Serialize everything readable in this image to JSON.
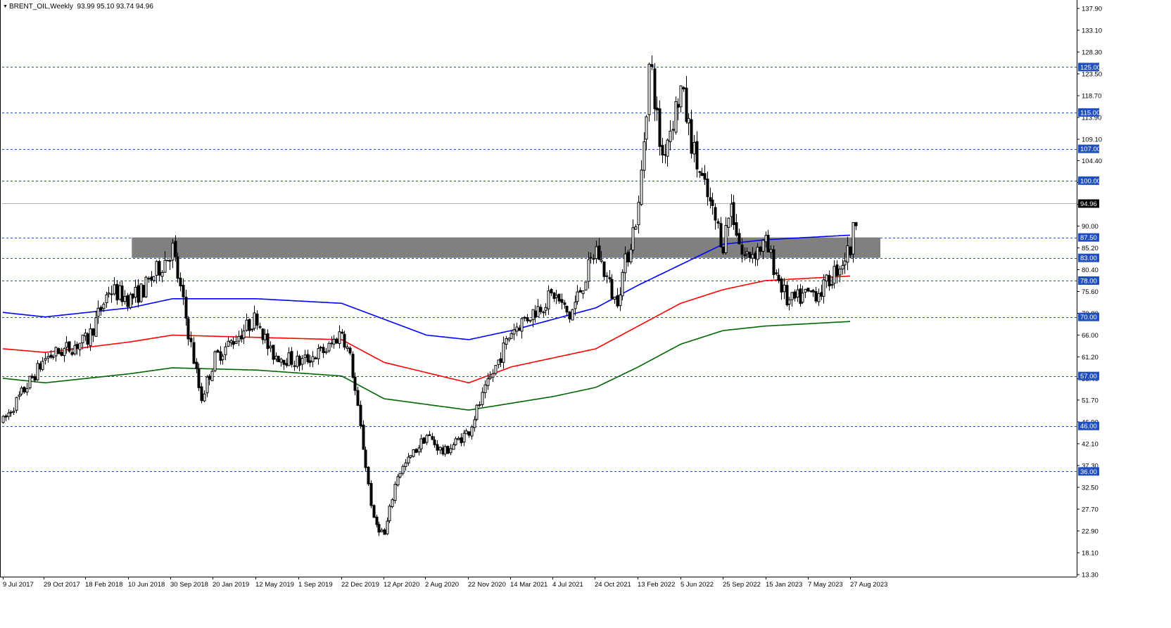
{
  "header": {
    "symbol": "BRENT_OIL,Weekly",
    "ohlc": "93.99 95.10 93.74 94.96"
  },
  "colors": {
    "bull_candle": "#ffffff",
    "bear_candle": "#000000",
    "ma_blue": "#0000ff",
    "ma_red": "#ff0000",
    "ma_green": "#006400",
    "level_line": "#1f4fbf",
    "level_label_bg": "#1f4fbf",
    "zone_fill": "#808080",
    "price_line": "#b0b0b0"
  },
  "chart_data": {
    "type": "candlestick",
    "symbol": "BRENT_OIL",
    "timeframe": "Weekly",
    "ylim": [
      13.3,
      137.9
    ],
    "y_ticks": [
      "137.90",
      "133.10",
      "128.30",
      "123.50",
      "118.70",
      "113.90",
      "109.10",
      "104.40",
      "99.60",
      "94.80",
      "90.00",
      "85.20",
      "80.40",
      "75.60",
      "70.80",
      "66.00",
      "61.20",
      "56.40",
      "51.70",
      "46.90",
      "42.10",
      "37.30",
      "32.50",
      "27.70",
      "22.90",
      "18.10",
      "13.30"
    ],
    "x_ticks": [
      "9 Jul 2017",
      "29 Oct 2017",
      "18 Feb 2018",
      "10 Jun 2018",
      "30 Sep 2018",
      "20 Jan 2019",
      "12 May 2019",
      "1 Sep 2019",
      "22 Dec 2019",
      "12 Apr 2020",
      "2 Aug 2020",
      "22 Nov 2020",
      "14 Mar 2021",
      "4 Jul 2021",
      "24 Oct 2021",
      "13 Feb 2022",
      "5 Jun 2022",
      "25 Sep 2022",
      "15 Jan 2023",
      "7 May 2023",
      "27 Aug 2023"
    ],
    "horizontal_levels": [
      "125.00",
      "115.00",
      "107.00",
      "100.00",
      "87.50",
      "83.00",
      "78.00",
      "70.00",
      "57.00",
      "46.00",
      "36.00"
    ],
    "current_price": "94.96",
    "zone": {
      "from": 83.0,
      "to": 87.5,
      "start": "Jun 2018",
      "end": "Nov 2023"
    },
    "price_anchors": [
      [
        "9 Jul 2017",
        47
      ],
      [
        "29 Oct 2017",
        61
      ],
      [
        "18 Feb 2018",
        65
      ],
      [
        "Apr 2018",
        76
      ],
      [
        "10 Jun 2018",
        74
      ],
      [
        "Jul 2018",
        76
      ],
      [
        "30 Sep 2018",
        85
      ],
      [
        "Nov 2018",
        65
      ],
      [
        "Dec 2018",
        52
      ],
      [
        "20 Jan 2019",
        61
      ],
      [
        "12 May 2019",
        70
      ],
      [
        "Jun 2019",
        62
      ],
      [
        "1 Sep 2019",
        60
      ],
      [
        "Nov 2019",
        63
      ],
      [
        "22 Dec 2019",
        67
      ],
      [
        "Jan 2020",
        60
      ],
      [
        "Mar 2020",
        25
      ],
      [
        "12 Apr 2020",
        22
      ],
      [
        "May 2020",
        35
      ],
      [
        "2 Aug 2020",
        44
      ],
      [
        "Sep 2020",
        40
      ],
      [
        "22 Nov 2020",
        45
      ],
      [
        "Dec 2020",
        50
      ],
      [
        "14 Mar 2021",
        67
      ],
      [
        "4 Jul 2021",
        75
      ],
      [
        "Aug 2021",
        70
      ],
      [
        "24 Oct 2021",
        85
      ],
      [
        "Dec 2021",
        73
      ],
      [
        "13 Feb 2022",
        94
      ],
      [
        "Mar 2022",
        127
      ],
      [
        "Apr 2022",
        105
      ],
      [
        "5 Jun 2022",
        120
      ],
      [
        "Jul 2022",
        104
      ],
      [
        "Aug 2022",
        96
      ],
      [
        "25 Sep 2022",
        86
      ],
      [
        "Oct 2022",
        95
      ],
      [
        "Nov 2022",
        83
      ],
      [
        "15 Jan 2023",
        86
      ],
      [
        "Mar 2023",
        73
      ],
      [
        "7 May 2023",
        75
      ],
      [
        "Jun 2023",
        76
      ],
      [
        "27 Aug 2023",
        85
      ],
      [
        "Sep 2023",
        95
      ]
    ],
    "moving_averages": [
      {
        "color": "blue",
        "anchors": [
          [
            "9 Jul 2017",
            71
          ],
          [
            "29 Oct 2017",
            70
          ],
          [
            "10 Jun 2018",
            72
          ],
          [
            "30 Sep 2018",
            74
          ],
          [
            "12 May 2019",
            74
          ],
          [
            "22 Dec 2019",
            73
          ],
          [
            "2 Aug 2020",
            66
          ],
          [
            "22 Nov 2020",
            65
          ],
          [
            "14 Mar 2021",
            67
          ],
          [
            "24 Oct 2021",
            72
          ],
          [
            "13 Feb 2022",
            77
          ],
          [
            "25 Sep 2022",
            86
          ],
          [
            "15 Jan 2023",
            87
          ],
          [
            "27 Aug 2023",
            88
          ]
        ]
      },
      {
        "color": "red",
        "anchors": [
          [
            "9 Jul 2017",
            63
          ],
          [
            "29 Oct 2017",
            62.2
          ],
          [
            "10 Jun 2018",
            64.5
          ],
          [
            "30 Sep 2018",
            66
          ],
          [
            "12 May 2019",
            65.5
          ],
          [
            "22 Dec 2019",
            65
          ],
          [
            "12 Apr 2020",
            60
          ],
          [
            "22 Nov 2020",
            55.5
          ],
          [
            "14 Mar 2021",
            59
          ],
          [
            "4 Jul 2021",
            61
          ],
          [
            "24 Oct 2021",
            63
          ],
          [
            "13 Feb 2022",
            68
          ],
          [
            "5 Jun 2022",
            73
          ],
          [
            "25 Sep 2022",
            76
          ],
          [
            "15 Jan 2023",
            78
          ],
          [
            "27 Aug 2023",
            79
          ]
        ]
      },
      {
        "color": "green",
        "anchors": [
          [
            "9 Jul 2017",
            56.5
          ],
          [
            "29 Oct 2017",
            55.5
          ],
          [
            "10 Jun 2018",
            57.5
          ],
          [
            "30 Sep 2018",
            58.8
          ],
          [
            "12 May 2019",
            58.3
          ],
          [
            "22 Dec 2019",
            57
          ],
          [
            "12 Apr 2020",
            52
          ],
          [
            "22 Nov 2020",
            49.5
          ],
          [
            "14 Mar 2021",
            51
          ],
          [
            "4 Jul 2021",
            52.5
          ],
          [
            "24 Oct 2021",
            54.5
          ],
          [
            "13 Feb 2022",
            59
          ],
          [
            "5 Jun 2022",
            64
          ],
          [
            "25 Sep 2022",
            67
          ],
          [
            "15 Jan 2023",
            68
          ],
          [
            "27 Aug 2023",
            69
          ]
        ]
      }
    ]
  }
}
